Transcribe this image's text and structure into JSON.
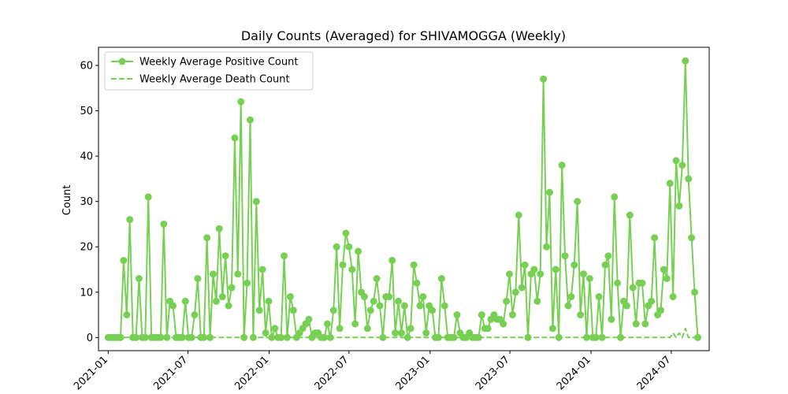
{
  "chart_data": {
    "type": "line",
    "title": "Daily Counts (Averaged) for SHIVAMOGGA (Weekly)",
    "xlabel": "",
    "ylabel": "Count",
    "ylim": [
      -2.9,
      64
    ],
    "yticks": [
      0,
      10,
      20,
      30,
      40,
      50,
      60
    ],
    "xlim": [
      "2020-12-10",
      "2024-09-25"
    ],
    "xticks": [
      "2021-01",
      "2021-07",
      "2022-01",
      "2022-07",
      "2023-01",
      "2023-07",
      "2024-01",
      "2024-07"
    ],
    "grid": false,
    "legend_position": "top-left",
    "colors": {
      "series": "#77d054"
    },
    "series": [
      {
        "name": "Weekly Average Positive Count",
        "style": "solid-line-with-markers",
        "points": [
          [
            "2021-01-01",
            0
          ],
          [
            "2021-01-08",
            0
          ],
          [
            "2021-01-15",
            0
          ],
          [
            "2021-01-22",
            0
          ],
          [
            "2021-01-29",
            0
          ],
          [
            "2021-02-05",
            17
          ],
          [
            "2021-02-12",
            5
          ],
          [
            "2021-02-19",
            26
          ],
          [
            "2021-02-26",
            0
          ],
          [
            "2021-03-05",
            0
          ],
          [
            "2021-03-12",
            13
          ],
          [
            "2021-03-19",
            0
          ],
          [
            "2021-03-26",
            0
          ],
          [
            "2021-04-02",
            31
          ],
          [
            "2021-04-09",
            0
          ],
          [
            "2021-04-16",
            0
          ],
          [
            "2021-04-23",
            0
          ],
          [
            "2021-04-30",
            0
          ],
          [
            "2021-05-07",
            25
          ],
          [
            "2021-05-14",
            0
          ],
          [
            "2021-05-21",
            8
          ],
          [
            "2021-05-28",
            7
          ],
          [
            "2021-06-04",
            0
          ],
          [
            "2021-06-11",
            0
          ],
          [
            "2021-06-18",
            0
          ],
          [
            "2021-06-25",
            8
          ],
          [
            "2021-07-02",
            0
          ],
          [
            "2021-07-09",
            0
          ],
          [
            "2021-07-16",
            5
          ],
          [
            "2021-07-23",
            13
          ],
          [
            "2021-07-30",
            0
          ],
          [
            "2021-08-06",
            0
          ],
          [
            "2021-08-13",
            22
          ],
          [
            "2021-08-20",
            0
          ],
          [
            "2021-08-27",
            14
          ],
          [
            "2021-09-03",
            8
          ],
          [
            "2021-09-10",
            24
          ],
          [
            "2021-09-17",
            9
          ],
          [
            "2021-09-24",
            18
          ],
          [
            "2021-10-01",
            7
          ],
          [
            "2021-10-08",
            11
          ],
          [
            "2021-10-15",
            44
          ],
          [
            "2021-10-22",
            14
          ],
          [
            "2021-10-29",
            52
          ],
          [
            "2021-11-05",
            0
          ],
          [
            "2021-11-12",
            12
          ],
          [
            "2021-11-19",
            48
          ],
          [
            "2021-11-26",
            0
          ],
          [
            "2021-12-03",
            30
          ],
          [
            "2021-12-10",
            6
          ],
          [
            "2021-12-17",
            15
          ],
          [
            "2021-12-24",
            1
          ],
          [
            "2021-12-31",
            8
          ],
          [
            "2022-01-07",
            0
          ],
          [
            "2022-01-14",
            2
          ],
          [
            "2022-01-21",
            0
          ],
          [
            "2022-01-28",
            0
          ],
          [
            "2022-02-04",
            18
          ],
          [
            "2022-02-11",
            0
          ],
          [
            "2022-02-18",
            9
          ],
          [
            "2022-02-25",
            6
          ],
          [
            "2022-03-04",
            0
          ],
          [
            "2022-03-11",
            1
          ],
          [
            "2022-03-18",
            2
          ],
          [
            "2022-03-25",
            3
          ],
          [
            "2022-04-01",
            4
          ],
          [
            "2022-04-08",
            0
          ],
          [
            "2022-04-15",
            1
          ],
          [
            "2022-04-22",
            1
          ],
          [
            "2022-04-29",
            0
          ],
          [
            "2022-05-06",
            0
          ],
          [
            "2022-05-13",
            3
          ],
          [
            "2022-05-20",
            0
          ],
          [
            "2022-05-27",
            6
          ],
          [
            "2022-06-03",
            20
          ],
          [
            "2022-06-10",
            2
          ],
          [
            "2022-06-17",
            16
          ],
          [
            "2022-06-24",
            23
          ],
          [
            "2022-07-01",
            20
          ],
          [
            "2022-07-08",
            15
          ],
          [
            "2022-07-15",
            3
          ],
          [
            "2022-07-22",
            19
          ],
          [
            "2022-07-29",
            10
          ],
          [
            "2022-08-05",
            9
          ],
          [
            "2022-08-12",
            2
          ],
          [
            "2022-08-19",
            6
          ],
          [
            "2022-08-26",
            8
          ],
          [
            "2022-09-02",
            13
          ],
          [
            "2022-09-09",
            7
          ],
          [
            "2022-09-16",
            0
          ],
          [
            "2022-09-23",
            9
          ],
          [
            "2022-09-30",
            9
          ],
          [
            "2022-10-07",
            17
          ],
          [
            "2022-10-14",
            1
          ],
          [
            "2022-10-21",
            8
          ],
          [
            "2022-10-28",
            1
          ],
          [
            "2022-11-04",
            7
          ],
          [
            "2022-11-11",
            0
          ],
          [
            "2022-11-18",
            2
          ],
          [
            "2022-11-25",
            16
          ],
          [
            "2022-12-02",
            12
          ],
          [
            "2022-12-09",
            7
          ],
          [
            "2022-12-16",
            9
          ],
          [
            "2022-12-23",
            1
          ],
          [
            "2022-12-30",
            7
          ],
          [
            "2023-01-06",
            6
          ],
          [
            "2023-01-13",
            0
          ],
          [
            "2023-01-20",
            0
          ],
          [
            "2023-01-27",
            13
          ],
          [
            "2023-02-03",
            7
          ],
          [
            "2023-02-10",
            0
          ],
          [
            "2023-02-17",
            0
          ],
          [
            "2023-02-24",
            0
          ],
          [
            "2023-03-03",
            5
          ],
          [
            "2023-03-10",
            1
          ],
          [
            "2023-03-17",
            0
          ],
          [
            "2023-03-24",
            0
          ],
          [
            "2023-03-31",
            1
          ],
          [
            "2023-04-07",
            0
          ],
          [
            "2023-04-14",
            0
          ],
          [
            "2023-04-21",
            0
          ],
          [
            "2023-04-28",
            5
          ],
          [
            "2023-05-05",
            2
          ],
          [
            "2023-05-12",
            2
          ],
          [
            "2023-05-19",
            4
          ],
          [
            "2023-05-26",
            5
          ],
          [
            "2023-06-02",
            4
          ],
          [
            "2023-06-09",
            4
          ],
          [
            "2023-06-16",
            3
          ],
          [
            "2023-06-23",
            8
          ],
          [
            "2023-06-30",
            14
          ],
          [
            "2023-07-07",
            5
          ],
          [
            "2023-07-14",
            10
          ],
          [
            "2023-07-21",
            27
          ],
          [
            "2023-07-28",
            11
          ],
          [
            "2023-08-04",
            16
          ],
          [
            "2023-08-11",
            0
          ],
          [
            "2023-08-18",
            14
          ],
          [
            "2023-08-25",
            15
          ],
          [
            "2023-09-01",
            8
          ],
          [
            "2023-09-08",
            14
          ],
          [
            "2023-09-15",
            57
          ],
          [
            "2023-09-22",
            20
          ],
          [
            "2023-09-29",
            32
          ],
          [
            "2023-10-06",
            2
          ],
          [
            "2023-10-13",
            15
          ],
          [
            "2023-10-20",
            0
          ],
          [
            "2023-10-27",
            38
          ],
          [
            "2023-11-03",
            18
          ],
          [
            "2023-11-10",
            7
          ],
          [
            "2023-11-17",
            9
          ],
          [
            "2023-11-24",
            16
          ],
          [
            "2023-12-01",
            30
          ],
          [
            "2023-12-08",
            5
          ],
          [
            "2023-12-15",
            14
          ],
          [
            "2023-12-22",
            0
          ],
          [
            "2023-12-29",
            13
          ],
          [
            "2024-01-05",
            0
          ],
          [
            "2024-01-12",
            0
          ],
          [
            "2024-01-19",
            9
          ],
          [
            "2024-01-26",
            0
          ],
          [
            "2024-02-02",
            16
          ],
          [
            "2024-02-09",
            18
          ],
          [
            "2024-02-16",
            4
          ],
          [
            "2024-02-23",
            31
          ],
          [
            "2024-03-01",
            12
          ],
          [
            "2024-03-08",
            0
          ],
          [
            "2024-03-15",
            8
          ],
          [
            "2024-03-22",
            7
          ],
          [
            "2024-03-29",
            27
          ],
          [
            "2024-04-05",
            11
          ],
          [
            "2024-04-12",
            3
          ],
          [
            "2024-04-19",
            12
          ],
          [
            "2024-04-26",
            12
          ],
          [
            "2024-05-03",
            3
          ],
          [
            "2024-05-10",
            7
          ],
          [
            "2024-05-17",
            8
          ],
          [
            "2024-05-24",
            22
          ],
          [
            "2024-05-31",
            5
          ],
          [
            "2024-06-07",
            6
          ],
          [
            "2024-06-14",
            15
          ],
          [
            "2024-06-21",
            13
          ],
          [
            "2024-06-28",
            34
          ],
          [
            "2024-07-05",
            9
          ],
          [
            "2024-07-12",
            39
          ],
          [
            "2024-07-19",
            29
          ],
          [
            "2024-07-26",
            38
          ],
          [
            "2024-08-02",
            61
          ],
          [
            "2024-08-09",
            35
          ],
          [
            "2024-08-16",
            22
          ],
          [
            "2024-08-23",
            10
          ],
          [
            "2024-08-30",
            0
          ]
        ]
      },
      {
        "name": "Weekly Average Death Count",
        "style": "dashed-line",
        "points": [
          [
            "2021-01-01",
            0
          ],
          [
            "2024-06-28",
            0
          ],
          [
            "2024-07-05",
            1
          ],
          [
            "2024-07-12",
            0
          ],
          [
            "2024-07-19",
            1
          ],
          [
            "2024-07-26",
            0
          ],
          [
            "2024-08-02",
            2
          ],
          [
            "2024-08-09",
            0
          ],
          [
            "2024-08-30",
            0
          ]
        ]
      }
    ]
  }
}
